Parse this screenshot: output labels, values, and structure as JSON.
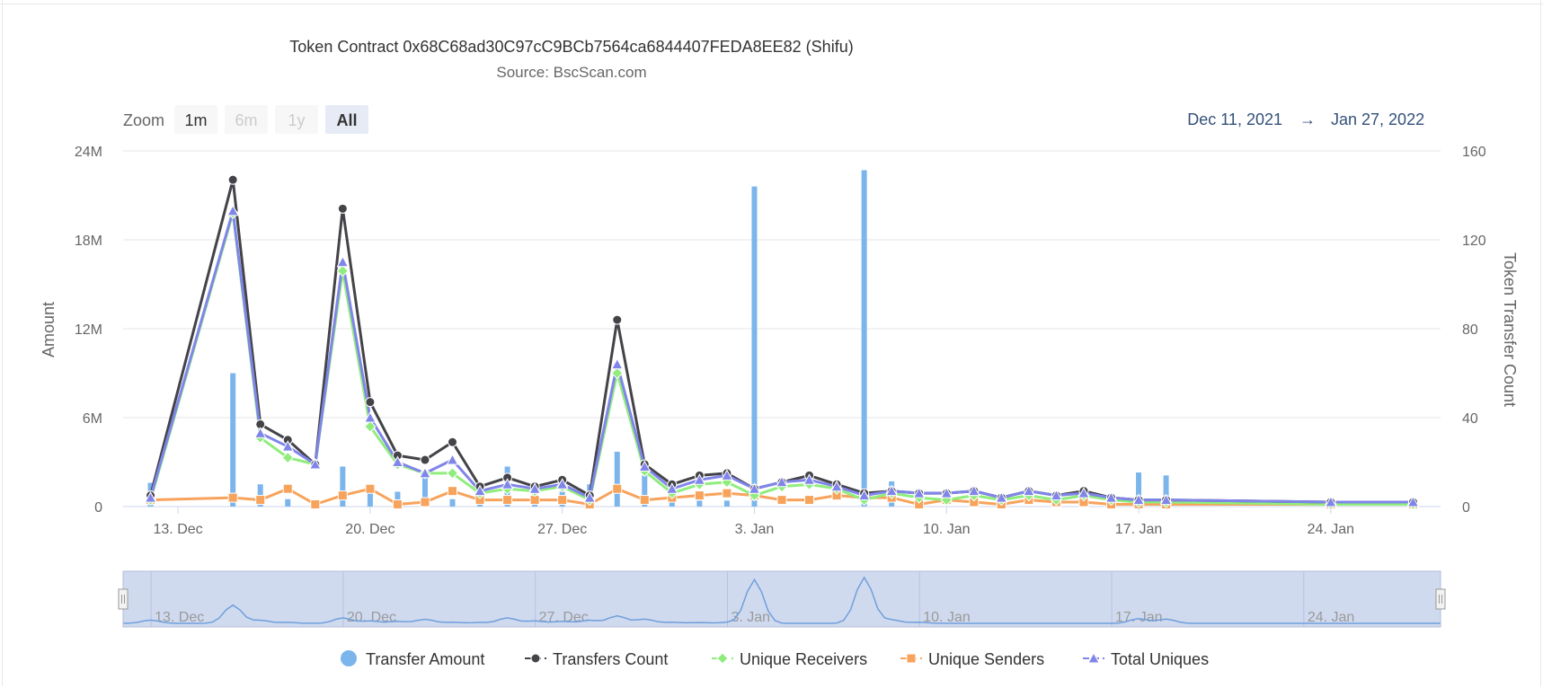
{
  "colors": {
    "transfer_amount": "#7cb5ec",
    "transfers_count": "#434348",
    "unique_receivers": "#90ed7d",
    "unique_senders": "#f7a35c",
    "total_uniques": "#8085e9",
    "navigator_mask": "#c8d3ec",
    "navigator_line": "#6f9fdc",
    "range_text": "#34507a"
  },
  "zoom": {
    "label": "Zoom",
    "buttons": [
      {
        "label": "1m",
        "state": "normal"
      },
      {
        "label": "6m",
        "state": "disabled"
      },
      {
        "label": "1y",
        "state": "disabled"
      },
      {
        "label": "All",
        "state": "selected"
      }
    ]
  },
  "range": {
    "from": "Dec 11, 2021",
    "arrow": "→",
    "to": "Jan 27, 2022"
  },
  "chart_data": {
    "type": "line",
    "title": "Token Contract 0x68C68ad30C97cC9BCb7564ca6844407FEDA8EE82 (Shifu)",
    "subtitle": "Source: BscScan.com",
    "x_type": "date",
    "x_ticks": [
      "13. Dec",
      "20. Dec",
      "27. Dec",
      "3. Jan",
      "10. Jan",
      "17. Jan",
      "24. Jan"
    ],
    "x_tick_dates": [
      "2021-12-13",
      "2021-12-20",
      "2021-12-27",
      "2022-01-03",
      "2022-01-10",
      "2022-01-17",
      "2022-01-24"
    ],
    "x_range": [
      "2021-12-11",
      "2022-01-28"
    ],
    "y_left": {
      "label": "Amount",
      "ticks": [
        "0",
        "6M",
        "12M",
        "18M",
        "24M"
      ],
      "range": [
        0,
        24000000
      ]
    },
    "y_right": {
      "label": "Token Transfer Count",
      "ticks": [
        "0",
        "40",
        "80",
        "120",
        "160"
      ],
      "range": [
        0,
        160
      ]
    },
    "grid": true,
    "legend_position": "bottom",
    "navigator": {
      "ticks": [
        "13. Dec",
        "20. Dec",
        "27. Dec",
        "3. Jan",
        "10. Jan",
        "17. Jan",
        "24. Jan"
      ]
    },
    "series": [
      {
        "name": "Transfer Amount",
        "axis": "left",
        "type": "column",
        "marker": "circle",
        "points": [
          [
            "2021-12-12",
            1600000
          ],
          [
            "2021-12-15",
            9000000
          ],
          [
            "2021-12-16",
            1500000
          ],
          [
            "2021-12-17",
            500000
          ],
          [
            "2021-12-19",
            2700000
          ],
          [
            "2021-12-20",
            1200000
          ],
          [
            "2021-12-21",
            1000000
          ],
          [
            "2021-12-22",
            2000000
          ],
          [
            "2021-12-23",
            500000
          ],
          [
            "2021-12-24",
            400000
          ],
          [
            "2021-12-25",
            2700000
          ],
          [
            "2021-12-26",
            1200000
          ],
          [
            "2021-12-27",
            1000000
          ],
          [
            "2021-12-28",
            1500000
          ],
          [
            "2021-12-29",
            3700000
          ],
          [
            "2021-12-30",
            2100000
          ],
          [
            "2021-12-31",
            500000
          ],
          [
            "2022-01-01",
            400000
          ],
          [
            "2022-01-02",
            400000
          ],
          [
            "2022-01-03",
            21600000
          ],
          [
            "2022-01-07",
            22700000
          ],
          [
            "2022-01-08",
            1700000
          ],
          [
            "2022-01-09",
            500000
          ],
          [
            "2022-01-17",
            2300000
          ],
          [
            "2022-01-18",
            2100000
          ]
        ]
      },
      {
        "name": "Transfers Count",
        "axis": "right",
        "type": "line",
        "marker": "circle",
        "points": [
          [
            "2021-12-12",
            5
          ],
          [
            "2021-12-15",
            147
          ],
          [
            "2021-12-16",
            37
          ],
          [
            "2021-12-17",
            30
          ],
          [
            "2021-12-18",
            19
          ],
          [
            "2021-12-19",
            134
          ],
          [
            "2021-12-20",
            47
          ],
          [
            "2021-12-21",
            23
          ],
          [
            "2021-12-22",
            21
          ],
          [
            "2021-12-23",
            29
          ],
          [
            "2021-12-24",
            9
          ],
          [
            "2021-12-25",
            13
          ],
          [
            "2021-12-26",
            9
          ],
          [
            "2021-12-27",
            12
          ],
          [
            "2021-12-28",
            5
          ],
          [
            "2021-12-29",
            84
          ],
          [
            "2021-12-30",
            19
          ],
          [
            "2021-12-31",
            10
          ],
          [
            "2022-01-01",
            14
          ],
          [
            "2022-01-02",
            15
          ],
          [
            "2022-01-03",
            8
          ],
          [
            "2022-01-04",
            11
          ],
          [
            "2022-01-05",
            14
          ],
          [
            "2022-01-06",
            10
          ],
          [
            "2022-01-07",
            6
          ],
          [
            "2022-01-08",
            7
          ],
          [
            "2022-01-09",
            6
          ],
          [
            "2022-01-10",
            6
          ],
          [
            "2022-01-11",
            7
          ],
          [
            "2022-01-12",
            4
          ],
          [
            "2022-01-13",
            7
          ],
          [
            "2022-01-14",
            5
          ],
          [
            "2022-01-15",
            7
          ],
          [
            "2022-01-16",
            4
          ],
          [
            "2022-01-17",
            3
          ],
          [
            "2022-01-18",
            3
          ],
          [
            "2022-01-24",
            2
          ],
          [
            "2022-01-27",
            2
          ]
        ]
      },
      {
        "name": "Unique Receivers",
        "axis": "right",
        "type": "line",
        "marker": "diamond",
        "points": [
          [
            "2021-12-12",
            3
          ],
          [
            "2021-12-15",
            132
          ],
          [
            "2021-12-16",
            31
          ],
          [
            "2021-12-17",
            22
          ],
          [
            "2021-12-18",
            19
          ],
          [
            "2021-12-19",
            106
          ],
          [
            "2021-12-20",
            36
          ],
          [
            "2021-12-21",
            19
          ],
          [
            "2021-12-22",
            15
          ],
          [
            "2021-12-23",
            15
          ],
          [
            "2021-12-24",
            6
          ],
          [
            "2021-12-25",
            8
          ],
          [
            "2021-12-26",
            7
          ],
          [
            "2021-12-27",
            9
          ],
          [
            "2021-12-28",
            3
          ],
          [
            "2021-12-29",
            60
          ],
          [
            "2021-12-30",
            16
          ],
          [
            "2021-12-31",
            6
          ],
          [
            "2022-01-01",
            10
          ],
          [
            "2022-01-02",
            11
          ],
          [
            "2022-01-03",
            5
          ],
          [
            "2022-01-04",
            9
          ],
          [
            "2022-01-05",
            10
          ],
          [
            "2022-01-06",
            8
          ],
          [
            "2022-01-07",
            3
          ],
          [
            "2022-01-08",
            6
          ],
          [
            "2022-01-09",
            4
          ],
          [
            "2022-01-10",
            3
          ],
          [
            "2022-01-11",
            5
          ],
          [
            "2022-01-12",
            3
          ],
          [
            "2022-01-13",
            5
          ],
          [
            "2022-01-14",
            3
          ],
          [
            "2022-01-15",
            5
          ],
          [
            "2022-01-16",
            3
          ],
          [
            "2022-01-17",
            2
          ],
          [
            "2022-01-18",
            2
          ],
          [
            "2022-01-24",
            1
          ],
          [
            "2022-01-27",
            1
          ]
        ]
      },
      {
        "name": "Unique Senders",
        "axis": "right",
        "type": "line",
        "marker": "square",
        "points": [
          [
            "2021-12-12",
            3
          ],
          [
            "2021-12-15",
            4
          ],
          [
            "2021-12-16",
            3
          ],
          [
            "2021-12-17",
            8
          ],
          [
            "2021-12-18",
            1
          ],
          [
            "2021-12-19",
            5
          ],
          [
            "2021-12-20",
            8
          ],
          [
            "2021-12-21",
            1
          ],
          [
            "2021-12-22",
            2
          ],
          [
            "2021-12-23",
            7
          ],
          [
            "2021-12-24",
            3
          ],
          [
            "2021-12-25",
            3
          ],
          [
            "2021-12-26",
            3
          ],
          [
            "2021-12-27",
            3
          ],
          [
            "2021-12-28",
            1
          ],
          [
            "2021-12-29",
            8
          ],
          [
            "2021-12-30",
            3
          ],
          [
            "2021-12-31",
            4
          ],
          [
            "2022-01-01",
            5
          ],
          [
            "2022-01-02",
            6
          ],
          [
            "2022-01-03",
            5
          ],
          [
            "2022-01-04",
            3
          ],
          [
            "2022-01-05",
            3
          ],
          [
            "2022-01-06",
            5
          ],
          [
            "2022-01-07",
            4
          ],
          [
            "2022-01-08",
            4
          ],
          [
            "2022-01-09",
            1
          ],
          [
            "2022-01-10",
            3
          ],
          [
            "2022-01-11",
            2
          ],
          [
            "2022-01-12",
            1
          ],
          [
            "2022-01-13",
            3
          ],
          [
            "2022-01-14",
            2
          ],
          [
            "2022-01-15",
            2
          ],
          [
            "2022-01-16",
            1
          ],
          [
            "2022-01-17",
            1
          ],
          [
            "2022-01-18",
            1
          ],
          [
            "2022-01-24",
            1
          ],
          [
            "2022-01-27",
            1
          ]
        ]
      },
      {
        "name": "Total Uniques",
        "axis": "right",
        "type": "line",
        "marker": "triangle",
        "points": [
          [
            "2021-12-12",
            4
          ],
          [
            "2021-12-15",
            133
          ],
          [
            "2021-12-16",
            33
          ],
          [
            "2021-12-17",
            27
          ],
          [
            "2021-12-18",
            19
          ],
          [
            "2021-12-19",
            110
          ],
          [
            "2021-12-20",
            40
          ],
          [
            "2021-12-21",
            20
          ],
          [
            "2021-12-22",
            15
          ],
          [
            "2021-12-23",
            21
          ],
          [
            "2021-12-24",
            7
          ],
          [
            "2021-12-25",
            10
          ],
          [
            "2021-12-26",
            8
          ],
          [
            "2021-12-27",
            10
          ],
          [
            "2021-12-28",
            4
          ],
          [
            "2021-12-29",
            64
          ],
          [
            "2021-12-30",
            18
          ],
          [
            "2021-12-31",
            8
          ],
          [
            "2022-01-01",
            12
          ],
          [
            "2022-01-02",
            14
          ],
          [
            "2022-01-03",
            8
          ],
          [
            "2022-01-04",
            11
          ],
          [
            "2022-01-05",
            12
          ],
          [
            "2022-01-06",
            9
          ],
          [
            "2022-01-07",
            5
          ],
          [
            "2022-01-08",
            7
          ],
          [
            "2022-01-09",
            6
          ],
          [
            "2022-01-10",
            6
          ],
          [
            "2022-01-11",
            7
          ],
          [
            "2022-01-12",
            4
          ],
          [
            "2022-01-13",
            7
          ],
          [
            "2022-01-14",
            5
          ],
          [
            "2022-01-15",
            6
          ],
          [
            "2022-01-16",
            4
          ],
          [
            "2022-01-17",
            3
          ],
          [
            "2022-01-18",
            3
          ],
          [
            "2022-01-24",
            2
          ],
          [
            "2022-01-27",
            2
          ]
        ]
      }
    ]
  }
}
